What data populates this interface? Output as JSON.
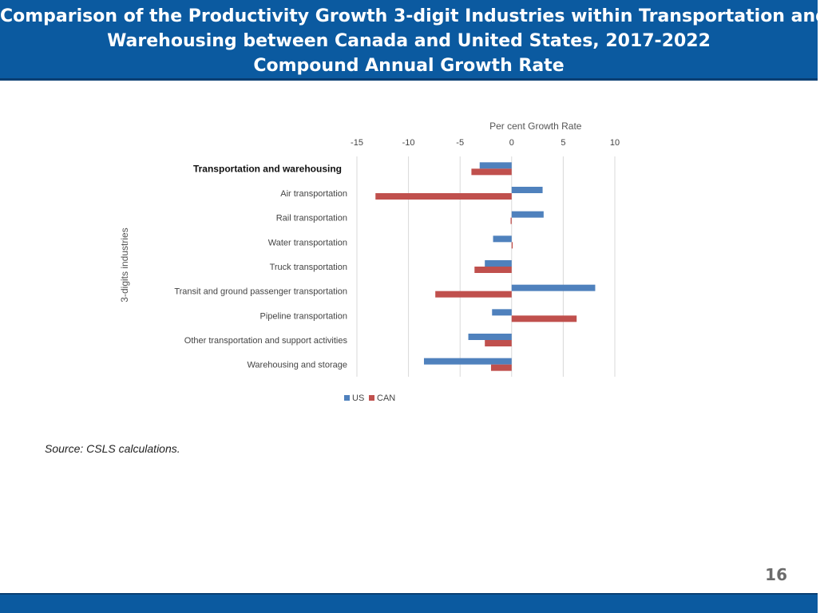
{
  "header": {
    "line1": "Comparison of the Productivity Growth 3-digit Industries within Transportation and",
    "line2": "Warehousing between Canada and United States, 2017-2022",
    "line3": "Compound Annual Growth Rate"
  },
  "source": "Source: CSLS calculations.",
  "page_number": "16",
  "colors": {
    "header_bg": "#0b5aa0",
    "us": "#4f81bd",
    "can": "#c0504d",
    "grid": "#d9d9d9"
  },
  "chart_data": {
    "type": "bar",
    "orientation": "horizontal",
    "title": "",
    "xlabel": "Per cent Growth Rate",
    "ylabel": "3-digits industries",
    "xlim": [
      -15,
      10
    ],
    "xticks": [
      -15,
      -10,
      -5,
      0,
      5,
      10
    ],
    "grid": true,
    "legend_position": "bottom",
    "categories": [
      "Transportation and warehousing",
      "Air transportation",
      "Rail transportation",
      "Water transportation",
      "Truck transportation",
      "Transit and ground passenger transportation",
      "Pipeline transportation",
      "Other transportation and support activities",
      "Warehousing and storage"
    ],
    "series": [
      {
        "name": "US",
        "values": [
          -3.1,
          3.0,
          3.1,
          -1.8,
          -2.6,
          8.1,
          -1.9,
          -4.2,
          -8.5
        ]
      },
      {
        "name": "CAN",
        "values": [
          -3.9,
          -13.2,
          -0.1,
          0.1,
          -3.6,
          -7.4,
          6.3,
          -2.6,
          -2.0
        ]
      }
    ]
  }
}
